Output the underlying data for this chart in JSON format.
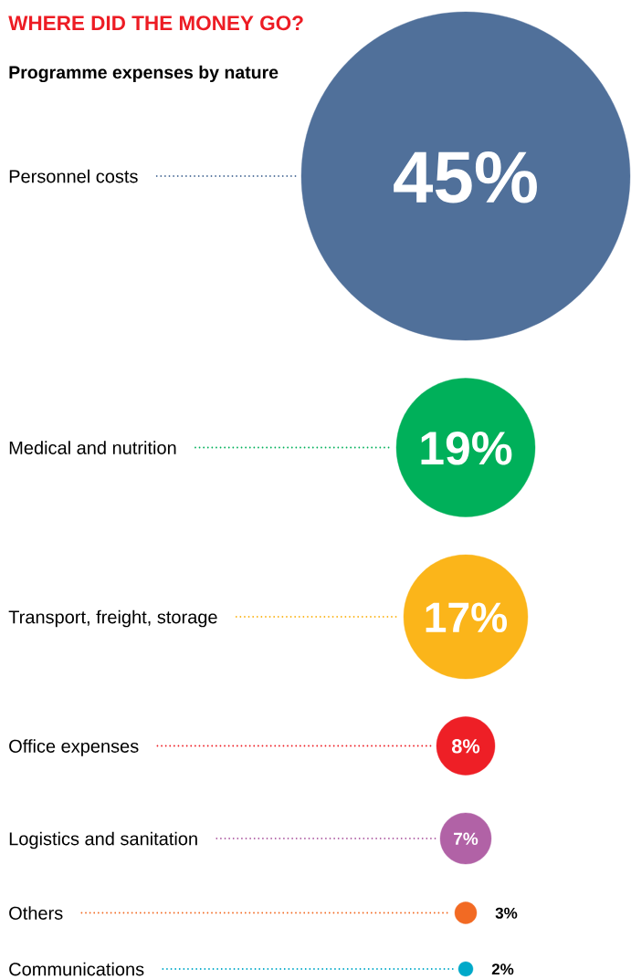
{
  "chart_data": {
    "type": "other",
    "title": "WHERE DID THE MONEY GO?",
    "subtitle": "Programme expenses by nature",
    "categories": [
      "Personnel costs",
      "Medical and nutrition",
      "Transport, freight, storage",
      "Office expenses",
      "Logistics and sanitation",
      "Others",
      "Communications"
    ],
    "values": [
      45,
      19,
      17,
      8,
      7,
      3,
      2
    ],
    "colors": [
      "#50709a",
      "#00b05a",
      "#fbb51a",
      "#ee1f26",
      "#b162a6",
      "#f26a23",
      "#00a9c9"
    ],
    "value_labels": [
      "45%",
      "19%",
      "17%",
      "8%",
      "7%",
      "3%",
      "2%"
    ]
  }
}
